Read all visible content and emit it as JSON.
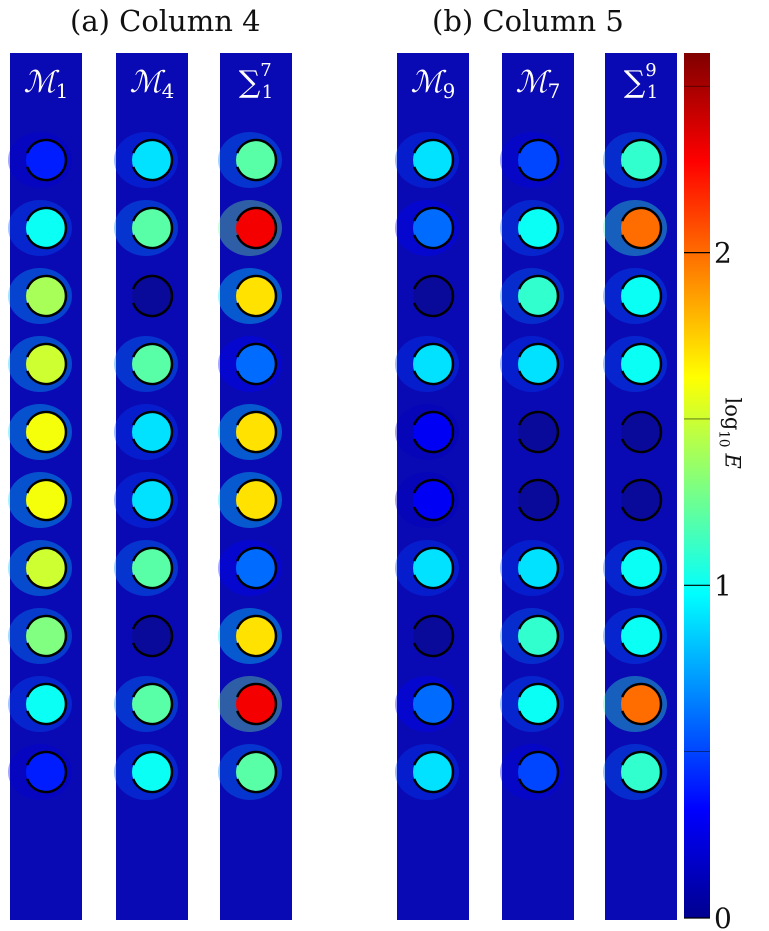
{
  "panels": [
    {
      "title": "(a) Column 4"
    },
    {
      "title": "(b) Column 5"
    }
  ],
  "chart_data": {
    "type": "heatmap",
    "colormap": "jet",
    "colorbar": {
      "label_base": "log",
      "label_sub": "10",
      "label_var": "E",
      "range": [
        0,
        2.6
      ],
      "ticks": [
        {
          "value": 0,
          "label": "0"
        },
        {
          "value": 1,
          "label": "1"
        },
        {
          "value": 2,
          "label": "2"
        }
      ]
    },
    "columns": [
      {
        "panel": 0,
        "title_main": "ℳ",
        "title_sub": "1",
        "title_sup": "",
        "values": [
          0.4,
          1.0,
          1.4,
          1.5,
          1.6,
          1.6,
          1.5,
          1.3,
          1.0,
          0.4
        ]
      },
      {
        "panel": 0,
        "title_main": "ℳ",
        "title_sub": "4",
        "title_sup": "",
        "values": [
          0.9,
          1.2,
          null,
          1.2,
          0.9,
          0.9,
          1.2,
          null,
          1.2,
          1.0
        ]
      },
      {
        "panel": 0,
        "title_main": "∑",
        "title_sub": "1",
        "title_sup": "7",
        "values": [
          1.2,
          2.3,
          1.7,
          0.6,
          1.7,
          1.7,
          0.6,
          1.7,
          2.3,
          1.2
        ]
      },
      {
        "panel": 1,
        "title_main": "ℳ",
        "title_sub": "9",
        "title_sup": "",
        "values": [
          0.9,
          0.6,
          null,
          0.9,
          0.3,
          0.3,
          0.9,
          null,
          0.6,
          0.9
        ]
      },
      {
        "panel": 1,
        "title_main": "ℳ",
        "title_sub": "7",
        "title_sup": "",
        "values": [
          0.5,
          1.0,
          1.1,
          0.9,
          null,
          null,
          0.9,
          1.1,
          1.0,
          0.5
        ]
      },
      {
        "panel": 1,
        "title_main": "∑",
        "title_sub": "1",
        "title_sup": "9",
        "values": [
          1.1,
          2.0,
          1.0,
          1.0,
          null,
          null,
          1.0,
          1.0,
          2.0,
          1.1
        ]
      }
    ]
  }
}
